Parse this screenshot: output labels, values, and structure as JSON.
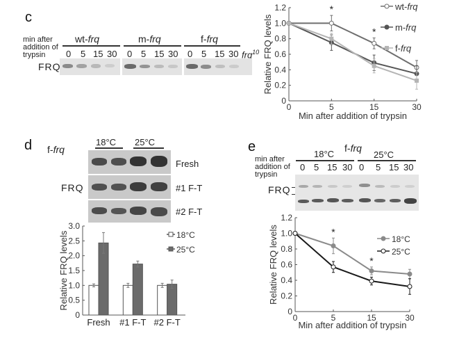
{
  "panel_c": {
    "letter": "c",
    "blot": {
      "row_label_lines": [
        "min after",
        "addition of",
        "trypsin"
      ],
      "band_label": "FRQ",
      "groups": [
        {
          "name_prefix": "wt-",
          "name_italic": "frq",
          "lanes": [
            "0",
            "5",
            "15",
            "30"
          ]
        },
        {
          "name_prefix": "m-",
          "name_italic": "frq",
          "lanes": [
            "0",
            "5",
            "15",
            "30"
          ]
        },
        {
          "name_prefix": "f-",
          "name_italic": "frq",
          "lanes": [
            "0",
            "5",
            "15",
            "30"
          ]
        }
      ],
      "control_label": "frq",
      "control_sup": "10"
    }
  },
  "panel_d": {
    "letter": "d",
    "strain_prefix": "f-",
    "strain_italic": "frq",
    "temps": [
      "18°C",
      "25°C"
    ],
    "band_label": "FRQ",
    "row_labels": [
      "Fresh",
      "#1 F-T",
      "#2 F-T"
    ]
  },
  "panel_e": {
    "letter": "e",
    "strain_prefix": "f-",
    "strain_italic": "frq",
    "temps": [
      "18°C",
      "25°C"
    ],
    "row_label_lines": [
      "min after",
      "addition of",
      "trypsin"
    ],
    "lanes": [
      "0",
      "5",
      "15",
      "30",
      "0",
      "5",
      "15",
      "30"
    ],
    "band_label": "FRQ"
  },
  "chart_data": [
    {
      "id": "c",
      "type": "line",
      "title": "",
      "xlabel": "Min after addition of trypsin",
      "ylabel": "Relative FRQ levels",
      "categories": [
        "0",
        "5",
        "15",
        "30"
      ],
      "ylim": [
        0,
        1.2
      ],
      "yticks": [
        "0",
        "0.2",
        "0.4",
        "0.6",
        "0.8",
        "1.0",
        "1.2"
      ],
      "legend_position": "top-right",
      "grid": false,
      "series": [
        {
          "name": "wt-frq",
          "marker": "open-circle",
          "color": "#6e6e6e",
          "values": [
            1.0,
            1.0,
            0.74,
            0.43
          ],
          "errors": [
            0,
            0.1,
            0.07,
            0.09
          ]
        },
        {
          "name": "m-frq",
          "marker": "filled-circle",
          "color": "#555555",
          "values": [
            1.0,
            0.75,
            0.49,
            0.35
          ],
          "errors": [
            0,
            0.1,
            0.1,
            0.1
          ]
        },
        {
          "name": "f-frq",
          "marker": "filled-square",
          "color": "#b5b5b5",
          "values": [
            1.0,
            0.8,
            0.45,
            0.26
          ],
          "errors": [
            0,
            0.07,
            0.09,
            0.11
          ]
        }
      ],
      "annotations": [
        {
          "x": "5",
          "text": "*"
        },
        {
          "x": "15",
          "text": "*"
        }
      ]
    },
    {
      "id": "d",
      "type": "bar",
      "title": "",
      "xlabel": "",
      "ylabel": "Relative FRQ levels",
      "categories": [
        "Fresh",
        "#1 F-T",
        "#2 F-T"
      ],
      "ylim": [
        0,
        3.0
      ],
      "yticks": [
        "0",
        "0.5",
        "1.0",
        "1.5",
        "2.0",
        "2.5",
        "3.0"
      ],
      "legend_position": "top-right",
      "grid": false,
      "series": [
        {
          "name": "18°C",
          "color": "#ffffff",
          "values": [
            1.0,
            1.0,
            1.0
          ],
          "errors": [
            0.05,
            0.07,
            0.07
          ]
        },
        {
          "name": "25°C",
          "color": "#6b6b6b",
          "values": [
            2.43,
            1.72,
            1.04
          ],
          "errors": [
            0.35,
            0.1,
            0.14
          ]
        }
      ]
    },
    {
      "id": "e",
      "type": "line",
      "title": "",
      "xlabel": "Min after addition of trypsin",
      "ylabel": "Relative FRQ levels",
      "categories": [
        "0",
        "5",
        "15",
        "30"
      ],
      "ylim": [
        0,
        1.2
      ],
      "yticks": [
        "0",
        "0.2",
        "0.4",
        "0.6",
        "0.8",
        "1.0",
        "1.2"
      ],
      "legend_position": "top-right",
      "grid": false,
      "series": [
        {
          "name": "18°C",
          "marker": "filled-circle",
          "color": "#8a8a8a",
          "values": [
            1.0,
            0.84,
            0.52,
            0.48
          ],
          "errors": [
            0,
            0.1,
            0.05,
            0.06
          ]
        },
        {
          "name": "25°C",
          "marker": "open-circle",
          "color": "#1a1a1a",
          "values": [
            1.0,
            0.57,
            0.39,
            0.32
          ],
          "errors": [
            0,
            0.07,
            0.05,
            0.1
          ]
        }
      ],
      "annotations": [
        {
          "x": "5",
          "text": "*"
        },
        {
          "x": "15",
          "text": "*"
        }
      ]
    }
  ]
}
